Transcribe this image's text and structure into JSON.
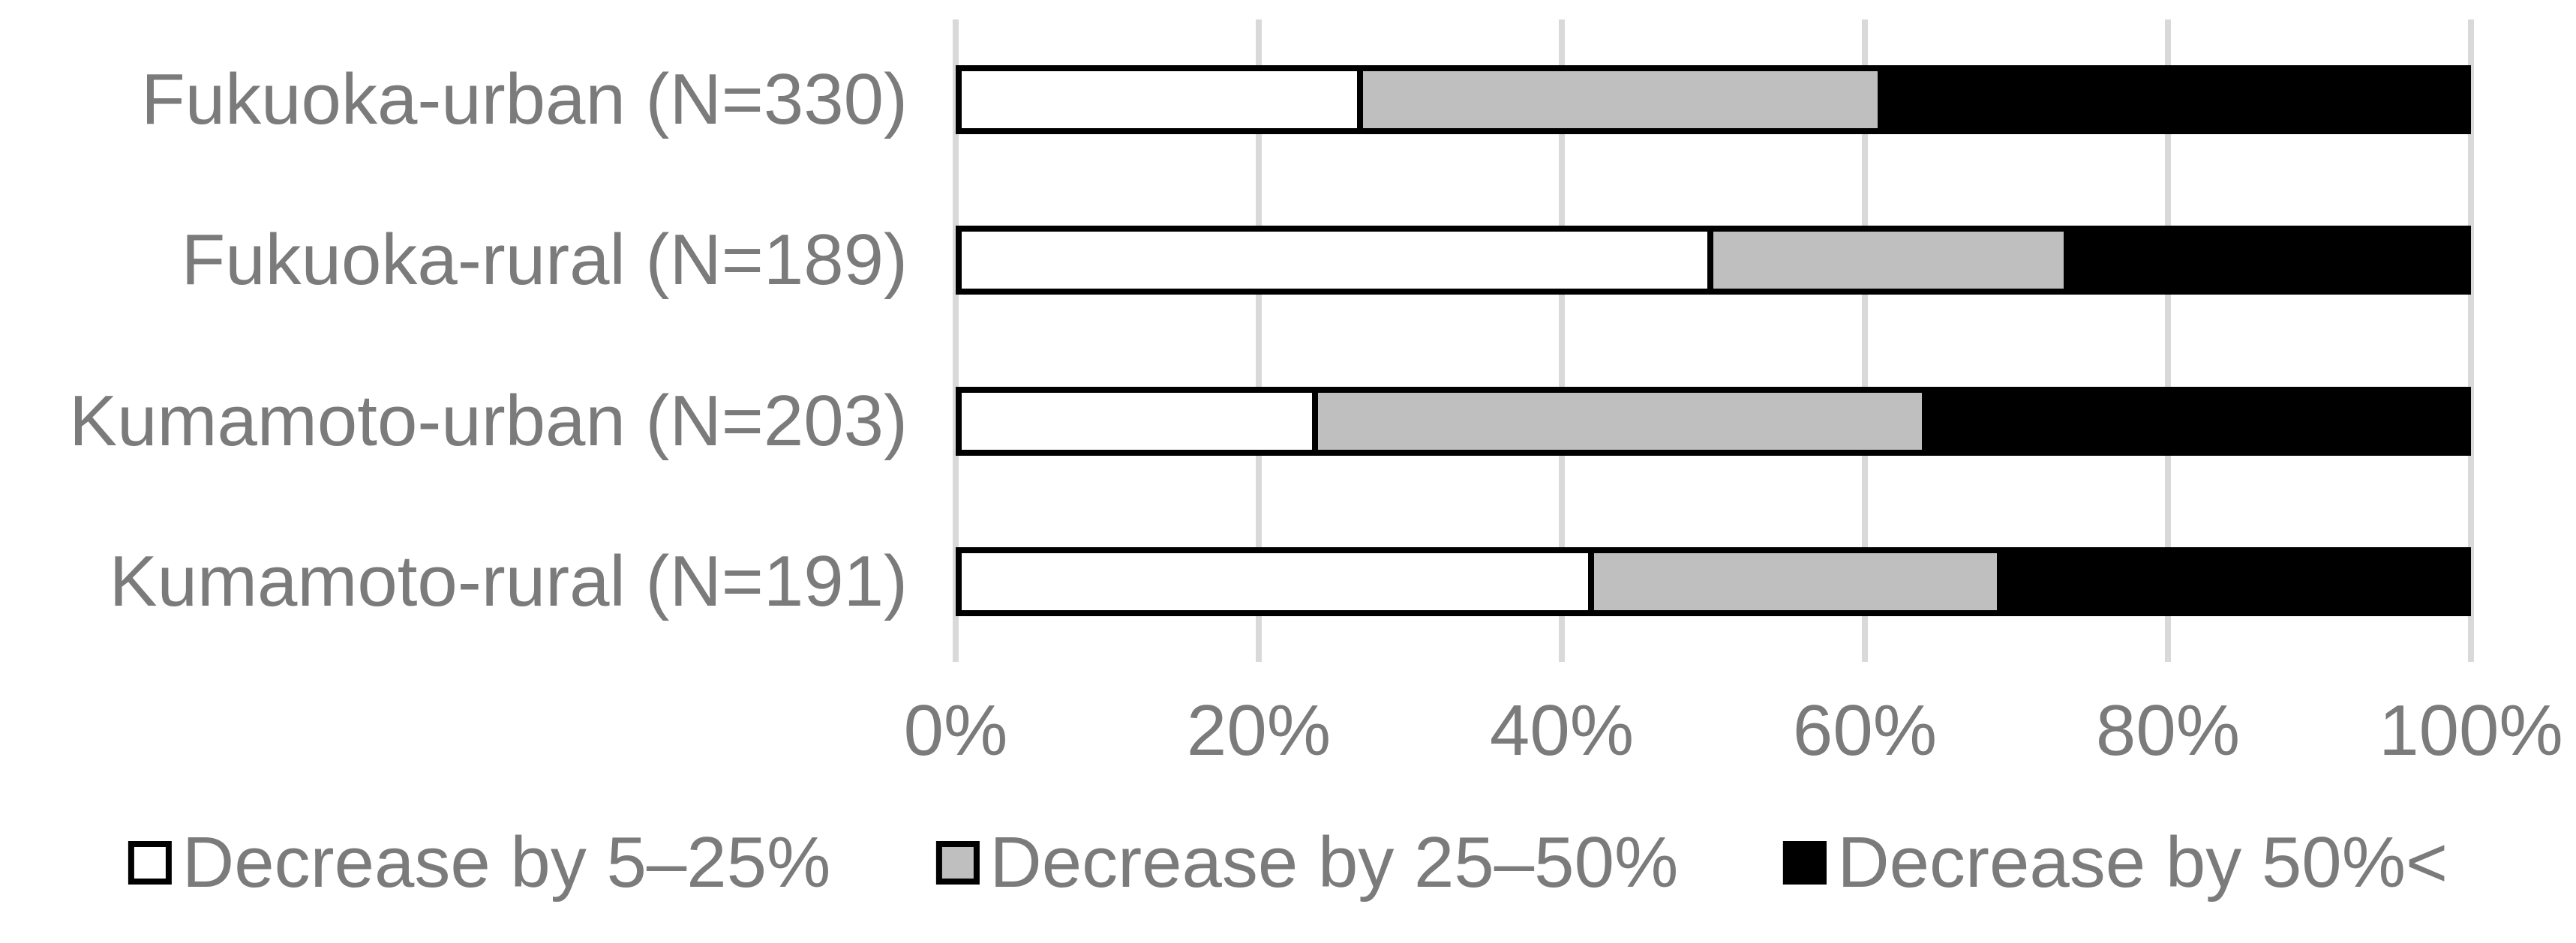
{
  "chart_data": {
    "type": "bar",
    "orientation": "horizontal",
    "stacked": true,
    "stacked_total": 100,
    "title": "",
    "xlabel": "",
    "ylabel": "",
    "categories": [
      "Fukuoka-urban (N=330)",
      "Fukuoka-rural (N=189)",
      "Kumamoto-urban (N=203)",
      "Kumamoto-rural (N=191)"
    ],
    "series": [
      {
        "name": "Decrease by 5–25%",
        "color": "#ffffff",
        "values": [
          26.5,
          50.0,
          23.5,
          42.0
        ]
      },
      {
        "name": "Decrease by 25–50%",
        "color": "#bfbfbf",
        "values": [
          34.5,
          23.5,
          40.5,
          27.0
        ]
      },
      {
        "name": "Decrease by 50%<",
        "color": "#000000",
        "values": [
          39.0,
          26.5,
          36.0,
          31.0
        ]
      }
    ],
    "x_axis": {
      "min": 0,
      "max": 100,
      "unit": "%",
      "tick_labels": [
        "0%",
        "20%",
        "40%",
        "60%",
        "80%",
        "100%"
      ]
    },
    "grid": true,
    "legend_position": "bottom"
  },
  "colors": {
    "text": "#7b7b7b",
    "gridline": "#d9d9d9",
    "bar_border": "#000000",
    "background": "#ffffff"
  }
}
